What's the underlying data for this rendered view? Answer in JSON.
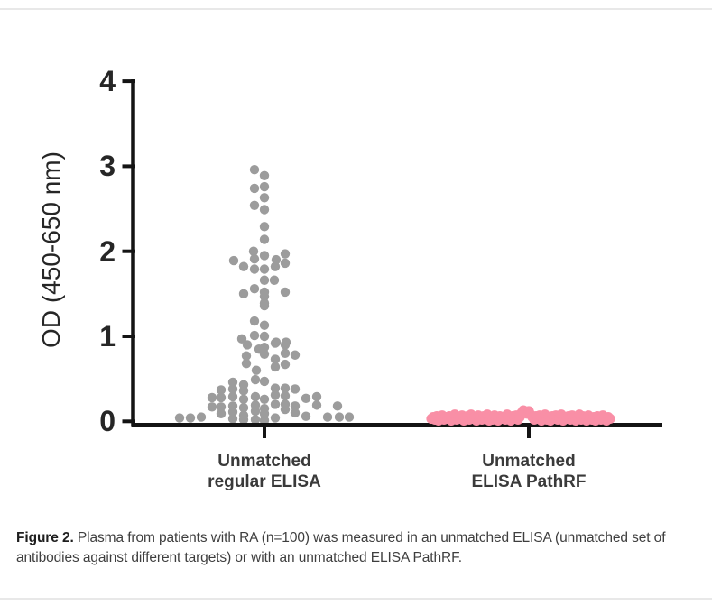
{
  "figure": {
    "caption": {
      "label": "Figure 2.",
      "line1": "Plasma from patients with RA (n=100) was measured in an unmatched ELISA (unmatched set of",
      "line2": "antibodies against different targets) or with an unmatched ELISA PathRF."
    }
  },
  "chart_data": {
    "type": "scatter",
    "subtype": "column-scatter-dot-plot",
    "title": "",
    "xlabel": "",
    "ylabel": "OD (450-650 nm)",
    "ylim": [
      0,
      4
    ],
    "y_ticks": [
      0,
      1,
      2,
      3,
      4
    ],
    "grid": "off",
    "legend": "none",
    "axis_color": "#141414",
    "n_per_group": 100,
    "groups": [
      {
        "label_line1": "Unmatched",
        "label_line2": "regular ELISA",
        "color": "#9c9c9c",
        "points": [
          [
            -11,
            2.96
          ],
          [
            0,
            2.89
          ],
          [
            0,
            2.76
          ],
          [
            -11,
            2.74
          ],
          [
            0,
            2.63
          ],
          [
            -11,
            2.54
          ],
          [
            0,
            2.49
          ],
          [
            0,
            2.29
          ],
          [
            0,
            2.14
          ],
          [
            -12,
            2.0
          ],
          [
            23,
            1.97
          ],
          [
            0,
            1.95
          ],
          [
            -11,
            1.91
          ],
          [
            13,
            1.9
          ],
          [
            -34,
            1.89
          ],
          [
            23,
            1.86
          ],
          [
            -23,
            1.82
          ],
          [
            12,
            1.82
          ],
          [
            -11,
            1.79
          ],
          [
            0,
            1.79
          ],
          [
            0,
            1.66
          ],
          [
            11,
            1.66
          ],
          [
            -11,
            1.56
          ],
          [
            0,
            1.52
          ],
          [
            23,
            1.52
          ],
          [
            -23,
            1.5
          ],
          [
            0,
            1.47
          ],
          [
            0,
            1.39
          ],
          [
            0,
            1.36
          ],
          [
            -11,
            1.18
          ],
          [
            0,
            1.13
          ],
          [
            -11,
            1.01
          ],
          [
            0,
            1.0
          ],
          [
            -25,
            0.97
          ],
          [
            13,
            0.93
          ],
          [
            24,
            0.93
          ],
          [
            0,
            0.87
          ],
          [
            -19,
            0.9
          ],
          [
            -6,
            0.85
          ],
          [
            12,
            0.92
          ],
          [
            23,
            0.9
          ],
          [
            -20,
            0.77
          ],
          [
            0,
            0.79
          ],
          [
            23,
            0.8
          ],
          [
            34,
            0.78
          ],
          [
            -20,
            0.68
          ],
          [
            -9,
            0.6
          ],
          [
            12,
            0.73
          ],
          [
            12,
            0.64
          ],
          [
            23,
            0.67
          ],
          [
            -35,
            0.46
          ],
          [
            -10,
            0.49
          ],
          [
            0,
            0.47
          ],
          [
            -23,
            0.43
          ],
          [
            -48,
            0.37
          ],
          [
            -35,
            0.38
          ],
          [
            -23,
            0.36
          ],
          [
            12,
            0.39
          ],
          [
            23,
            0.39
          ],
          [
            34,
            0.38
          ],
          [
            -58,
            0.28
          ],
          [
            -48,
            0.28
          ],
          [
            -35,
            0.29
          ],
          [
            -23,
            0.26
          ],
          [
            -10,
            0.29
          ],
          [
            0,
            0.26
          ],
          [
            12,
            0.31
          ],
          [
            23,
            0.3
          ],
          [
            46,
            0.27
          ],
          [
            58,
            0.29
          ],
          [
            -58,
            0.17
          ],
          [
            -48,
            0.17
          ],
          [
            -35,
            0.18
          ],
          [
            -23,
            0.16
          ],
          [
            -10,
            0.19
          ],
          [
            0,
            0.15
          ],
          [
            12,
            0.2
          ],
          [
            23,
            0.2
          ],
          [
            34,
            0.18
          ],
          [
            58,
            0.19
          ],
          [
            81,
            0.18
          ],
          [
            -94,
            0.04
          ],
          [
            -82,
            0.04
          ],
          [
            -70,
            0.05
          ],
          [
            -48,
            0.09
          ],
          [
            -35,
            0.11
          ],
          [
            -23,
            0.07
          ],
          [
            -10,
            0.12
          ],
          [
            0,
            0.09
          ],
          [
            23,
            0.14
          ],
          [
            34,
            0.1
          ],
          [
            46,
            0.06
          ],
          [
            70,
            0.05
          ],
          [
            83,
            0.05
          ],
          [
            94,
            0.05
          ],
          [
            -10,
            0.02
          ],
          [
            0,
            0.01
          ],
          [
            12,
            0.04
          ],
          [
            -35,
            0.03
          ],
          [
            -23,
            0.02
          ]
        ]
      },
      {
        "label_line1": "Unmatched",
        "label_line2": "ELISA PathRF",
        "color": "#f98fa6",
        "points": [
          [
            -108,
            0.03
          ],
          [
            -106,
            0.05
          ],
          [
            -104,
            0.02
          ],
          [
            -102,
            0.06
          ],
          [
            -100,
            0.01
          ],
          [
            -98,
            0.04
          ],
          [
            -96,
            0.07
          ],
          [
            -94,
            0.02
          ],
          [
            -92,
            0.05
          ],
          [
            -90,
            0.03
          ],
          [
            -88,
            0.06
          ],
          [
            -86,
            0.01
          ],
          [
            -84,
            0.04
          ],
          [
            -82,
            0.08
          ],
          [
            -80,
            0.02
          ],
          [
            -78,
            0.05
          ],
          [
            -76,
            0.03
          ],
          [
            -74,
            0.07
          ],
          [
            -72,
            0.01
          ],
          [
            -70,
            0.04
          ],
          [
            -68,
            0.06
          ],
          [
            -66,
            0.02
          ],
          [
            -64,
            0.08
          ],
          [
            -62,
            0.03
          ],
          [
            -60,
            0.05
          ],
          [
            -58,
            0.01
          ],
          [
            -56,
            0.07
          ],
          [
            -54,
            0.04
          ],
          [
            -52,
            0.02
          ],
          [
            -50,
            0.06
          ],
          [
            -48,
            0.03
          ],
          [
            -46,
            0.08
          ],
          [
            -44,
            0.01
          ],
          [
            -42,
            0.05
          ],
          [
            -40,
            0.02
          ],
          [
            -38,
            0.07
          ],
          [
            -36,
            0.04
          ],
          [
            -34,
            0.01
          ],
          [
            -32,
            0.06
          ],
          [
            -30,
            0.03
          ],
          [
            -28,
            0.05
          ],
          [
            -26,
            0.02
          ],
          [
            -24,
            0.08
          ],
          [
            -22,
            0.04
          ],
          [
            -20,
            0.01
          ],
          [
            -18,
            0.06
          ],
          [
            -16,
            0.03
          ],
          [
            -14,
            0.07
          ],
          [
            -12,
            0.02
          ],
          [
            -10,
            0.05
          ],
          [
            -8,
            0.1
          ],
          [
            -6,
            0.13
          ],
          [
            -4,
            0.11
          ],
          [
            -2,
            0.09
          ],
          [
            0,
            0.12
          ],
          [
            2,
            0.08
          ],
          [
            4,
            0.05
          ],
          [
            6,
            0.02
          ],
          [
            8,
            0.06
          ],
          [
            10,
            0.03
          ],
          [
            12,
            0.07
          ],
          [
            14,
            0.01
          ],
          [
            16,
            0.04
          ],
          [
            18,
            0.08
          ],
          [
            20,
            0.02
          ],
          [
            22,
            0.05
          ],
          [
            24,
            0.01
          ],
          [
            26,
            0.06
          ],
          [
            28,
            0.03
          ],
          [
            30,
            0.07
          ],
          [
            32,
            0.02
          ],
          [
            34,
            0.04
          ],
          [
            36,
            0.08
          ],
          [
            38,
            0.01
          ],
          [
            40,
            0.05
          ],
          [
            42,
            0.03
          ],
          [
            44,
            0.06
          ],
          [
            46,
            0.02
          ],
          [
            48,
            0.07
          ],
          [
            50,
            0.04
          ],
          [
            52,
            0.01
          ],
          [
            54,
            0.05
          ],
          [
            56,
            0.08
          ],
          [
            58,
            0.02
          ],
          [
            60,
            0.06
          ],
          [
            62,
            0.03
          ],
          [
            64,
            0.01
          ],
          [
            66,
            0.07
          ],
          [
            68,
            0.04
          ],
          [
            70,
            0.02
          ],
          [
            72,
            0.05
          ],
          [
            74,
            0.01
          ],
          [
            76,
            0.06
          ],
          [
            78,
            0.03
          ],
          [
            80,
            0.02
          ],
          [
            82,
            0.07
          ],
          [
            84,
            0.04
          ],
          [
            86,
            0.01
          ],
          [
            88,
            0.05
          ],
          [
            90,
            0.03
          ]
        ]
      }
    ]
  }
}
